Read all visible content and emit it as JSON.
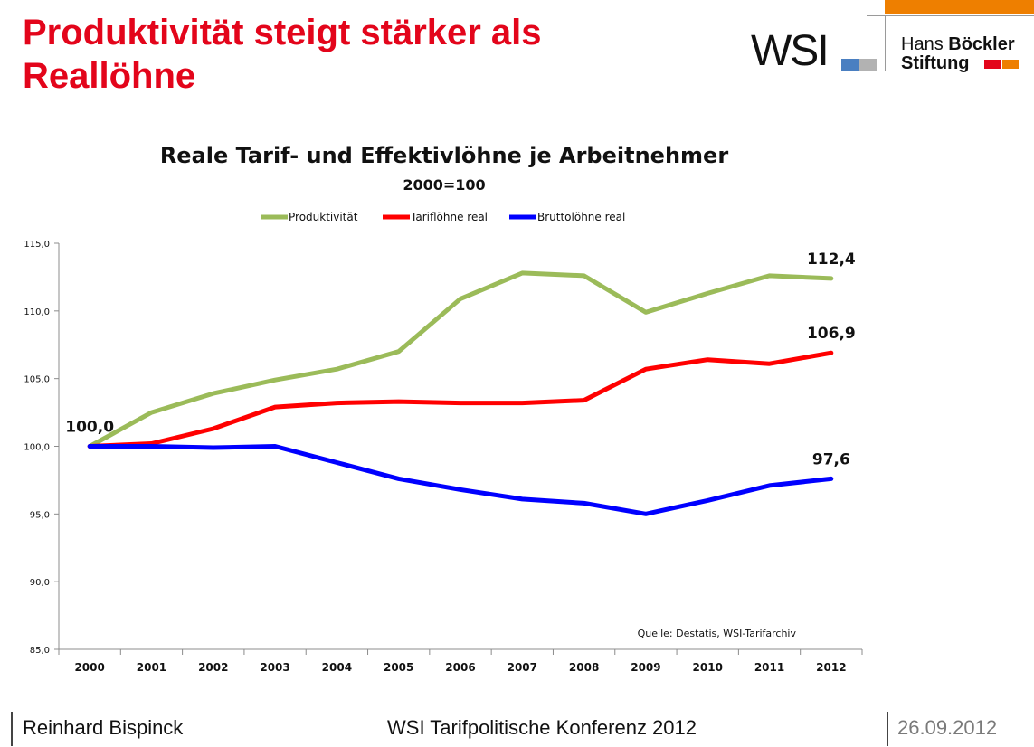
{
  "slide": {
    "title": "Produktivität steigt stärker als Reallöhne"
  },
  "logos": {
    "wsi_text": "WSI",
    "hbs_line1_regular": "Hans ",
    "hbs_line1_bold": "Böckler",
    "hbs_line2": "Stiftung",
    "colors": {
      "orange": "#ee7f00",
      "wsi_blue": "#4a7fc1",
      "wsi_gray": "#b2b2b2",
      "hbs_red": "#e3051b",
      "hbs_orange": "#ee7f00"
    }
  },
  "chart_data": {
    "type": "line",
    "title": "Reale Tarif- und Effektivlöhne je Arbeitnehmer",
    "subtitle": "2000=100",
    "categories": [
      "2000",
      "2001",
      "2002",
      "2003",
      "2004",
      "2005",
      "2006",
      "2007",
      "2008",
      "2009",
      "2010",
      "2011",
      "2012"
    ],
    "series": [
      {
        "name": "Produktivität",
        "color": "#9bbb59",
        "values": [
          100.0,
          102.5,
          103.9,
          104.9,
          105.7,
          107.0,
          110.9,
          112.8,
          112.6,
          109.9,
          111.3,
          112.6,
          112.4
        ]
      },
      {
        "name": "Tariflöhne real",
        "color": "#ff0000",
        "values": [
          100.0,
          100.2,
          101.3,
          102.9,
          103.2,
          103.3,
          103.2,
          103.2,
          103.4,
          105.7,
          106.4,
          106.1,
          106.9
        ]
      },
      {
        "name": "Bruttolöhne real",
        "color": "#0000ff",
        "values": [
          100.0,
          100.0,
          99.9,
          100.0,
          98.8,
          97.6,
          96.8,
          96.1,
          95.8,
          95.0,
          96.0,
          97.1,
          97.6
        ]
      }
    ],
    "ylim": [
      85.0,
      115.0
    ],
    "yticks": [
      "85,0",
      "90,0",
      "95,0",
      "100,0",
      "105,0",
      "110,0",
      "115,0"
    ],
    "ytick_values": [
      85,
      90,
      95,
      100,
      105,
      110,
      115
    ],
    "annotations": [
      {
        "text": "100,0",
        "category_index": 0,
        "value": 100.0
      },
      {
        "text": "112,4",
        "category_index": 12,
        "value": 112.4
      },
      {
        "text": "106,9",
        "category_index": 12,
        "value": 106.9
      },
      {
        "text": "97,6",
        "category_index": 12,
        "value": 97.6
      }
    ],
    "source": "Quelle: Destatis, WSI-Tarifarchiv",
    "legend_position": "top",
    "grid": false
  },
  "footer": {
    "author": "Reinhard Bispinck",
    "event": "WSI Tarifpolitische Konferenz 2012",
    "date": "26.09.2012"
  }
}
